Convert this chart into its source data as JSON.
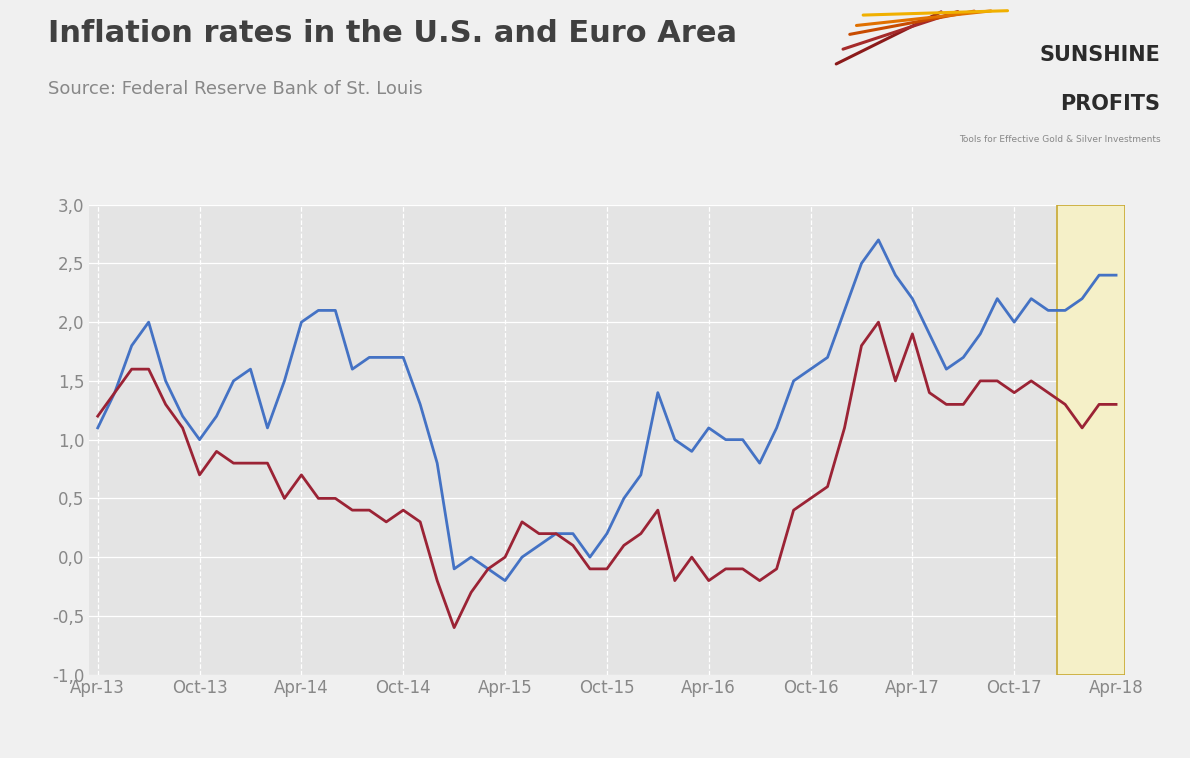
{
  "title": "Inflation rates in the U.S. and Euro Area",
  "source": "Source: Federal Reserve Bank of St. Louis",
  "title_fontsize": 22,
  "source_fontsize": 13,
  "background_color": "#f0f0f0",
  "plot_bg_color": "#e4e4e4",
  "highlight_bg_color": "#f5f0c8",
  "highlight_edge_color": "#c8a830",
  "ylim": [
    -1.0,
    3.0
  ],
  "yticks": [
    -1.0,
    -0.5,
    0.0,
    0.5,
    1.0,
    1.5,
    2.0,
    2.5,
    3.0
  ],
  "x_labels": [
    "Apr-13",
    "Oct-13",
    "Apr-14",
    "Oct-14",
    "Apr-15",
    "Oct-15",
    "Apr-16",
    "Oct-16",
    "Apr-17",
    "Oct-17",
    "Apr-18"
  ],
  "x_tick_indices": [
    0,
    6,
    12,
    18,
    24,
    30,
    36,
    42,
    48,
    54,
    60
  ],
  "us_color": "#4472c4",
  "euro_color": "#9b2335",
  "grid_color": "#ffffff",
  "grid_linestyle": "--",
  "tick_color": "#888888",
  "tick_fontsize": 12,
  "line_width": 2.0,
  "highlight_start_index": 57,
  "n_total": 61,
  "us_values": [
    1.1,
    1.4,
    1.8,
    2.0,
    1.5,
    1.2,
    1.0,
    1.2,
    1.5,
    1.6,
    1.1,
    1.5,
    2.0,
    2.1,
    2.1,
    1.6,
    1.7,
    1.7,
    1.7,
    1.3,
    0.8,
    -0.1,
    0.0,
    -0.1,
    -0.2,
    0.0,
    0.1,
    0.2,
    0.2,
    0.0,
    0.2,
    0.5,
    0.7,
    1.4,
    1.0,
    0.9,
    1.1,
    1.0,
    1.0,
    0.8,
    1.1,
    1.5,
    1.6,
    1.7,
    2.1,
    2.5,
    2.7,
    2.4,
    2.2,
    1.9,
    1.6,
    1.7,
    1.9,
    2.2,
    2.0,
    2.2,
    2.1,
    2.1,
    2.2,
    2.4,
    2.4
  ],
  "euro_values": [
    1.2,
    1.4,
    1.6,
    1.6,
    1.3,
    1.1,
    0.7,
    0.9,
    0.8,
    0.8,
    0.8,
    0.5,
    0.7,
    0.5,
    0.5,
    0.4,
    0.4,
    0.3,
    0.4,
    0.3,
    -0.2,
    -0.6,
    -0.3,
    -0.1,
    0.0,
    0.3,
    0.2,
    0.2,
    0.1,
    -0.1,
    -0.1,
    0.1,
    0.2,
    0.4,
    -0.2,
    0.0,
    -0.2,
    -0.1,
    -0.1,
    -0.2,
    -0.1,
    0.4,
    0.5,
    0.6,
    1.1,
    1.8,
    2.0,
    1.5,
    1.9,
    1.4,
    1.3,
    1.3,
    1.5,
    1.5,
    1.4,
    1.5,
    1.4,
    1.3,
    1.1,
    1.3,
    1.3
  ],
  "logo_sunshine": "SUNSHINE",
  "logo_profits": "PROFITS",
  "logo_tagline": "Tools for Effective Gold & Silver Investments",
  "ray_colors": [
    "#8b1a1a",
    "#a52a2a",
    "#c84b00",
    "#e07000",
    "#f0b000"
  ],
  "title_color": "#404040",
  "source_color": "#888888"
}
